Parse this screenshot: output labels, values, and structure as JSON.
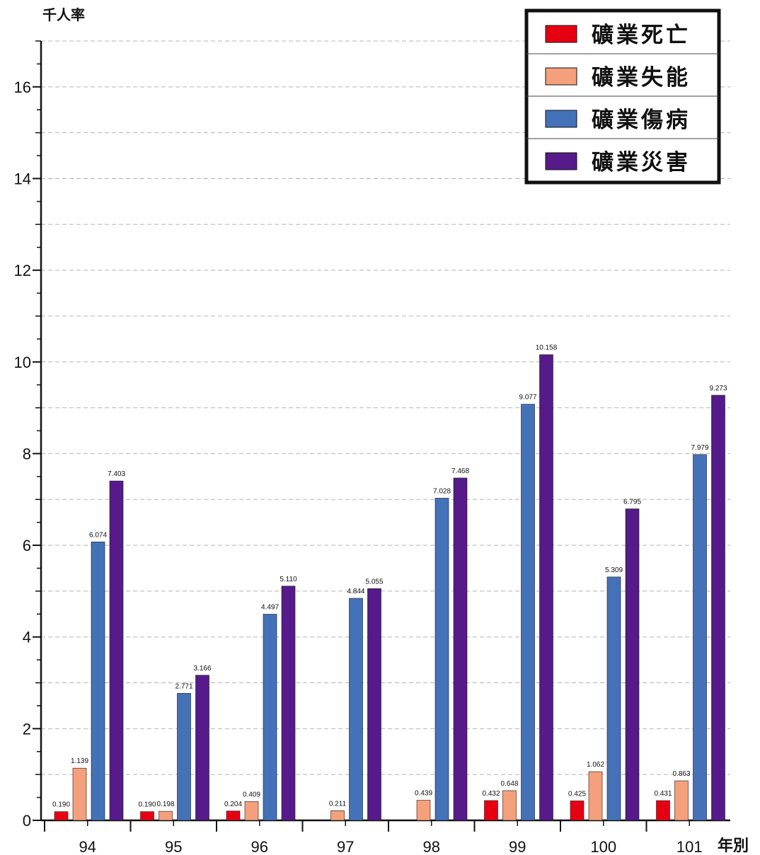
{
  "chart_data": {
    "type": "bar",
    "ylabel": "千人率",
    "xlabel": "年別",
    "ylim": [
      0,
      17
    ],
    "y_ticks": [
      0,
      2,
      4,
      6,
      8,
      10,
      12,
      14,
      16
    ],
    "grid": true,
    "legend_position": "top-right",
    "categories": [
      "94",
      "95",
      "96",
      "97",
      "98",
      "99",
      "100",
      "101"
    ],
    "series": [
      {
        "name": "礦業死亡",
        "color": "#e60012",
        "values": [
          0.19,
          0.19,
          0.204,
          null,
          null,
          0.432,
          0.425,
          0.431
        ],
        "labels": [
          "0.190",
          "0.190",
          "0.204",
          "",
          "",
          "0.432",
          "0.425",
          "0.431"
        ]
      },
      {
        "name": "礦業失能",
        "color": "#f4a07c",
        "values": [
          1.139,
          0.198,
          0.409,
          0.211,
          0.439,
          0.648,
          1.062,
          0.863
        ],
        "labels": [
          "1.139",
          "0.198",
          "0.409",
          "0.211",
          "0.439",
          "0.648",
          "1.062",
          "0.863"
        ]
      },
      {
        "name": "礦業傷病",
        "color": "#4472b8",
        "values": [
          6.074,
          2.771,
          4.497,
          4.844,
          7.028,
          9.077,
          5.309,
          7.979
        ],
        "labels": [
          "6.074",
          "2.771",
          "4.497",
          "4.844",
          "7.028",
          "9.077",
          "5.309",
          "7.979"
        ]
      },
      {
        "name": "礦業災害",
        "color": "#561a8b",
        "values": [
          7.403,
          3.166,
          5.11,
          5.055,
          7.468,
          10.158,
          6.795,
          9.273
        ],
        "labels": [
          "7.403",
          "3.166",
          "5.110",
          "5.055",
          "7.468",
          "10.158",
          "6.795",
          "9.273"
        ]
      }
    ]
  }
}
